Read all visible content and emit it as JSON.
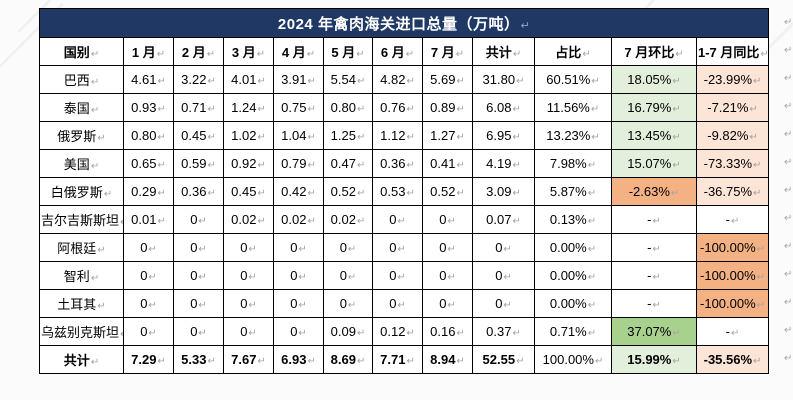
{
  "title": "2024 年禽肉海关进口总量（万吨）",
  "cell_mark": "↵",
  "colors": {
    "header_navy": "#1f3864",
    "green_light": "#e2efda",
    "green_mid": "#a9d18e",
    "orange_mid": "#f4b183",
    "salmon_light": "#fce4d6",
    "white": "#ffffff",
    "grid_border": "#000000",
    "mark_gray": "#a3a3a3"
  },
  "columns": [
    "国别",
    "1 月",
    "2 月",
    "3 月",
    "4 月",
    "5 月",
    "6 月",
    "7 月",
    "共计",
    "占比",
    "7 月环比",
    "1-7 月同比"
  ],
  "rows": [
    {
      "name": "巴西",
      "values": [
        "4.61",
        "3.22",
        "4.01",
        "3.91",
        "5.54",
        "4.82",
        "5.69",
        "31.80",
        "60.51%",
        "18.05%",
        "-23.99%"
      ],
      "mom_bg": "green_light",
      "yoy_bg": "salmon_light",
      "is_total": false
    },
    {
      "name": "泰国",
      "values": [
        "0.93",
        "0.71",
        "1.24",
        "0.75",
        "0.80",
        "0.76",
        "0.89",
        "6.08",
        "11.56%",
        "16.79%",
        "-7.21%"
      ],
      "mom_bg": "green_light",
      "yoy_bg": "salmon_light",
      "is_total": false
    },
    {
      "name": "俄罗斯",
      "values": [
        "0.80",
        "0.45",
        "1.02",
        "1.04",
        "1.25",
        "1.12",
        "1.27",
        "6.95",
        "13.23%",
        "13.45%",
        "-9.82%"
      ],
      "mom_bg": "green_light",
      "yoy_bg": "salmon_light",
      "is_total": false
    },
    {
      "name": "美国",
      "values": [
        "0.65",
        "0.59",
        "0.92",
        "0.79",
        "0.47",
        "0.36",
        "0.41",
        "4.19",
        "7.98%",
        "15.07%",
        "-73.33%"
      ],
      "mom_bg": "green_light",
      "yoy_bg": "salmon_light",
      "is_total": false
    },
    {
      "name": "白俄罗斯",
      "values": [
        "0.29",
        "0.36",
        "0.45",
        "0.42",
        "0.52",
        "0.53",
        "0.52",
        "3.09",
        "5.87%",
        "-2.63%",
        "-36.75%"
      ],
      "mom_bg": "orange_mid",
      "yoy_bg": "salmon_light",
      "is_total": false
    },
    {
      "name": "吉尔吉斯斯坦",
      "values": [
        "0.01",
        "0",
        "0.02",
        "0.02",
        "0.02",
        "0",
        "0",
        "0.07",
        "0.13%",
        "-",
        "-"
      ],
      "mom_bg": "white",
      "yoy_bg": "white",
      "is_total": false
    },
    {
      "name": "阿根廷",
      "values": [
        "0",
        "0",
        "0",
        "0",
        "0",
        "0",
        "0",
        "0",
        "0.00%",
        "-",
        "-100.00%"
      ],
      "mom_bg": "white",
      "yoy_bg": "orange_mid",
      "is_total": false
    },
    {
      "name": "智利",
      "values": [
        "0",
        "0",
        "0",
        "0",
        "0",
        "0",
        "0",
        "0",
        "0.00%",
        "-",
        "-100.00%"
      ],
      "mom_bg": "white",
      "yoy_bg": "orange_mid",
      "is_total": false
    },
    {
      "name": "土耳其",
      "values": [
        "0",
        "0",
        "0",
        "0",
        "0",
        "0",
        "0",
        "0",
        "0.00%",
        "-",
        "-100.00%"
      ],
      "mom_bg": "white",
      "yoy_bg": "orange_mid",
      "is_total": false
    },
    {
      "name": "乌兹别克斯坦",
      "values": [
        "0",
        "0",
        "0",
        "0",
        "0.09",
        "0.12",
        "0.16",
        "0.37",
        "0.71%",
        "37.07%",
        "-"
      ],
      "mom_bg": "green_mid",
      "yoy_bg": "white",
      "is_total": false
    },
    {
      "name": "共计",
      "values": [
        "7.29",
        "5.33",
        "7.67",
        "6.93",
        "8.69",
        "7.71",
        "8.94",
        "52.55",
        "100.00%",
        "15.99%",
        "-35.56%"
      ],
      "mom_bg": "green_light",
      "yoy_bg": "salmon_light",
      "is_total": true
    }
  ]
}
